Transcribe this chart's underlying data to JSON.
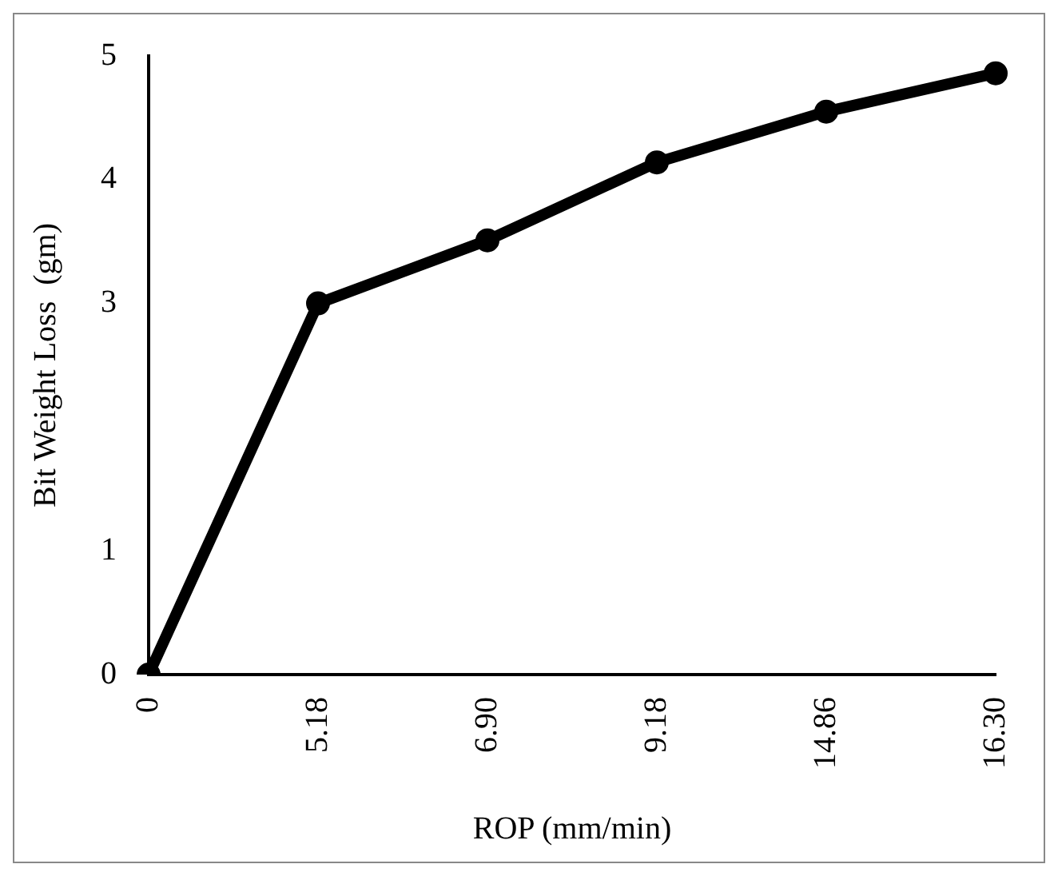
{
  "chart_data": {
    "type": "line",
    "xlabel": "ROP (mm/min)",
    "ylabel": "Bit Weight Loss  (gm)",
    "categories": [
      "0",
      "5.18",
      "6.90",
      "9.18",
      "14.86",
      "16.30"
    ],
    "series": [
      {
        "color": "#000000",
        "values": [
          0,
          3,
          3.51,
          4.14,
          4.55,
          4.86
        ]
      }
    ],
    "ylim": [
      0,
      5
    ],
    "yticks": [
      0,
      1,
      3,
      4,
      5
    ],
    "grid": false,
    "legend": false,
    "marker": "circle",
    "line_style": "solid"
  }
}
